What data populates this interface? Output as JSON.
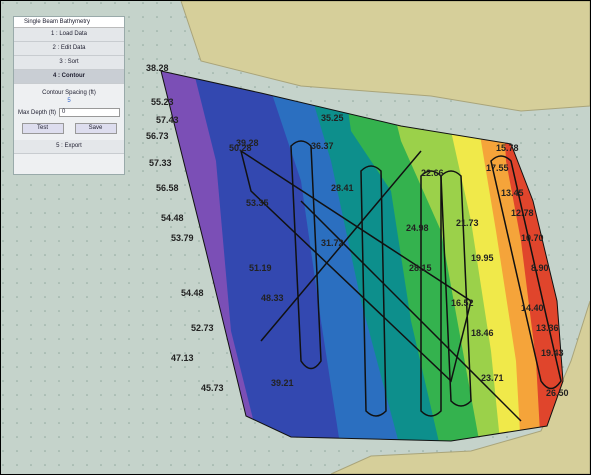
{
  "window": {
    "title": "Single Beam Bathymetry"
  },
  "panel": {
    "steps": [
      "1 : Load Data",
      "2 : Edit Data",
      "3 : Sort",
      "4 : Contour"
    ],
    "spacing_label": "Contour Spacing (ft)",
    "spacing_value": "5",
    "depth_label": "Max Depth (ft)",
    "depth_value": "0",
    "buttons": [
      "Test",
      "Save"
    ],
    "export": "5 : Export"
  },
  "soundings": [
    "38.28",
    "55.23",
    "57.43",
    "56.73",
    "57.33",
    "56.58",
    "54.48",
    "53.79",
    "54.48",
    "52.73",
    "47.13",
    "45.73",
    "50.28",
    "53.35",
    "51.19",
    "48.33",
    "39.28",
    "36.37",
    "28.41",
    "31.72",
    "24.98",
    "22.66",
    "28.15",
    "21.73",
    "19.95",
    "17.55",
    "15.78",
    "13.45",
    "12.78",
    "10.70",
    "8.90",
    "14.40",
    "13.36",
    "19.43",
    "26.50",
    "39.21",
    "35.25",
    "16.52",
    "18.46",
    "23.71"
  ]
}
